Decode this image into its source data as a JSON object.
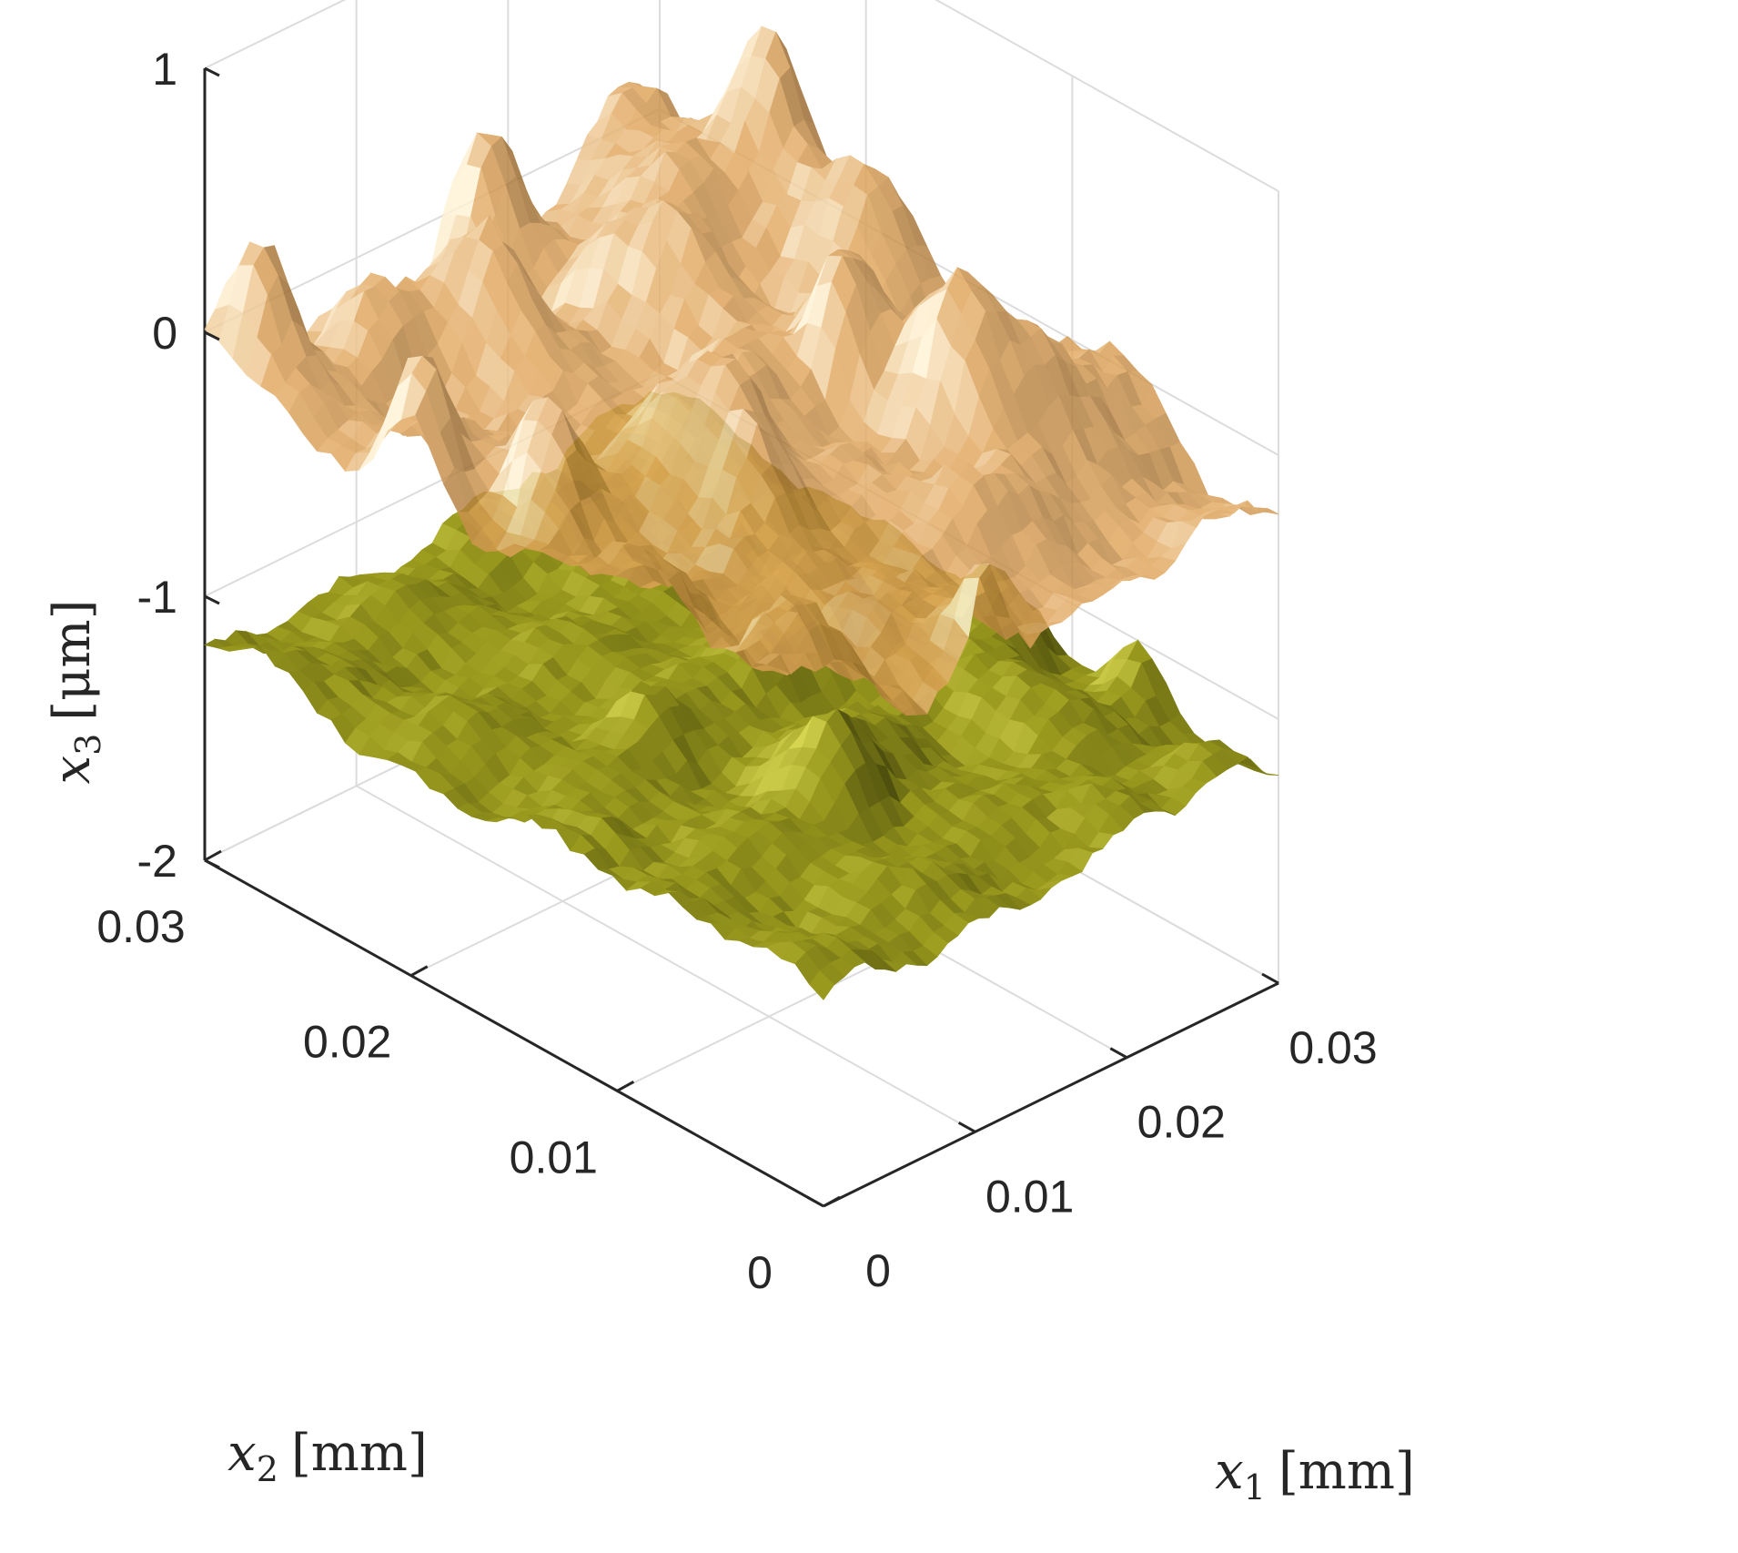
{
  "chart_data": {
    "type": "surface",
    "projection": "3d",
    "grid": true,
    "axes": {
      "x1": {
        "label_var": "x",
        "label_sub": "1",
        "label_unit": "[mm]",
        "range": [
          0,
          0.03
        ],
        "ticks": [
          0,
          0.01,
          0.02,
          0.03
        ],
        "tick_labels": [
          "0",
          "0.01",
          "0.02",
          "0.03"
        ]
      },
      "x2": {
        "label_var": "x",
        "label_sub": "2",
        "label_unit": "[mm]",
        "range": [
          0,
          0.03
        ],
        "ticks": [
          0,
          0.01,
          0.02,
          0.03
        ],
        "tick_labels": [
          "0",
          "0.01",
          "0.02",
          "0.03"
        ]
      },
      "x3": {
        "label_var": "x",
        "label_sub": "3",
        "label_unit": "[μm]",
        "range": [
          -2,
          1
        ],
        "ticks": [
          -2,
          -1,
          0,
          1
        ],
        "tick_labels": [
          "-2",
          "-1",
          "0",
          "1"
        ]
      }
    },
    "series": [
      {
        "surface": "lower",
        "color": "#9a9a1e",
        "highlight": "#f2f06a",
        "mean_height": -1.2,
        "opacity": 1.0
      },
      {
        "surface": "upper",
        "color": "#e0a45a",
        "highlight": "#fff3d6",
        "mean_height": -0.2,
        "opacity": 0.7
      }
    ]
  }
}
